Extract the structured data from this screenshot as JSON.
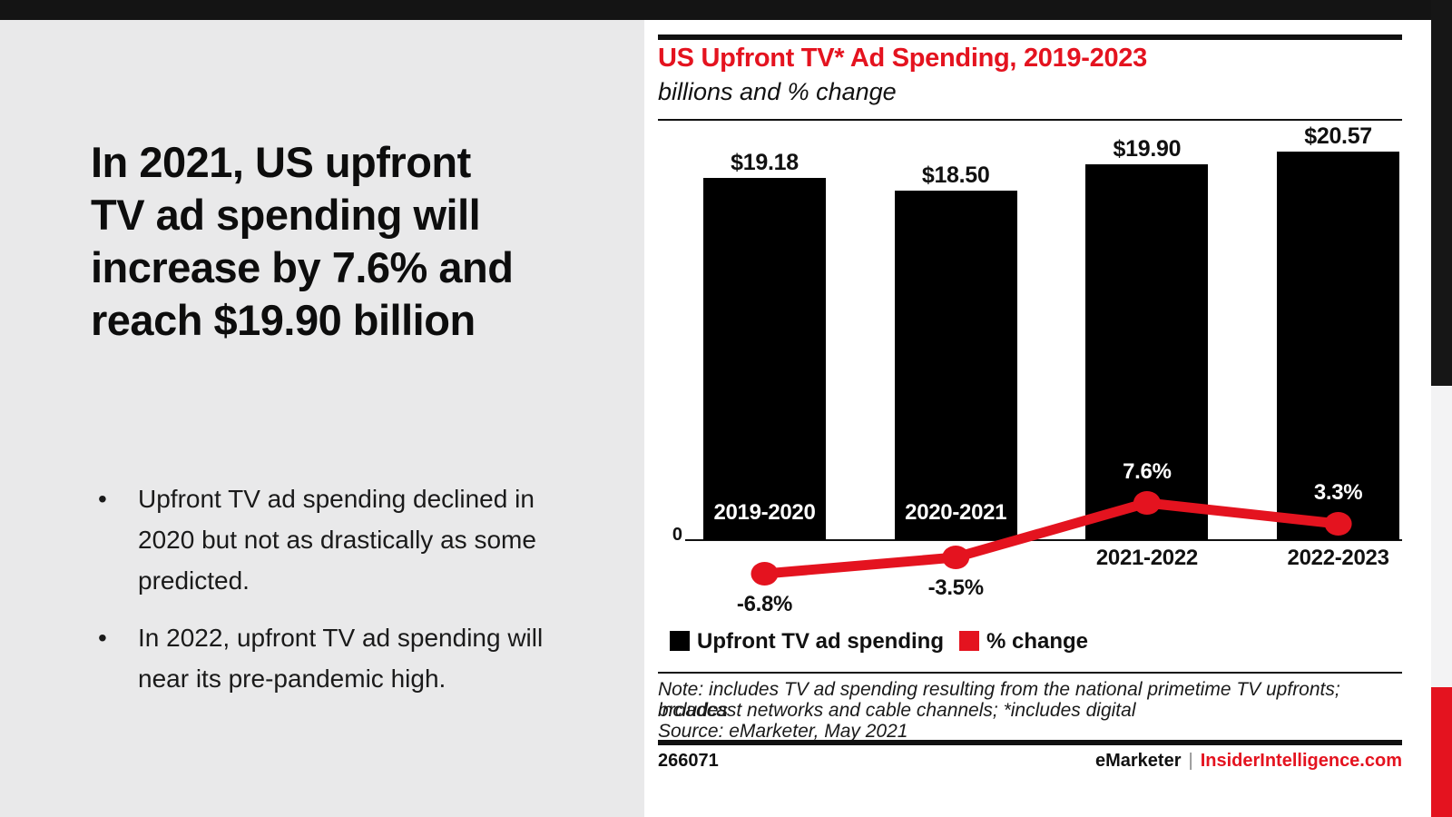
{
  "slide": {
    "headline_lines": [
      "In 2021, US upfront",
      "TV ad spending will",
      "increase by 7.6% and",
      "reach $19.90 billion"
    ],
    "bullets": [
      "Upfront TV ad spending declined in 2020 but not as drastically as some predicted.",
      "In 2022, upfront TV ad spending will near its pre-pandemic high."
    ]
  },
  "chart": {
    "title": "US Upfront TV* Ad Spending, 2019-2023",
    "subtitle": "billions and % change",
    "zero_label": "0",
    "legend": [
      {
        "label": "Upfront TV ad spending",
        "color": "#000000"
      },
      {
        "label": "% change",
        "color": "#e4131f"
      }
    ],
    "note_lines": [
      "Note: includes TV ad spending resulting from the national primetime TV upfronts; includes",
      "broadcast networks and cable channels; *includes digital",
      "Source: eMarketer, May 2021"
    ],
    "footer": {
      "id": "266071",
      "brand": "eMarketer",
      "separator": "|",
      "site": "InsiderIntelligence.com"
    }
  },
  "chart_data": {
    "type": "bar+line",
    "categories": [
      "2019-2020",
      "2020-2021",
      "2021-2022",
      "2022-2023"
    ],
    "series": [
      {
        "name": "Upfront TV ad spending",
        "type": "bar",
        "unit": "USD billions",
        "values": [
          19.18,
          18.5,
          19.9,
          20.57
        ],
        "labels": [
          "$19.18",
          "$18.50",
          "$19.90",
          "$20.57"
        ],
        "color": "#000000"
      },
      {
        "name": "% change",
        "type": "line",
        "unit": "percent",
        "values": [
          -6.8,
          -3.5,
          7.6,
          3.3
        ],
        "labels": [
          "-6.8%",
          "-3.5%",
          "7.6%",
          "3.3%"
        ],
        "color": "#e4131f",
        "label_colors": [
          "#111111",
          "#111111",
          "#ffffff",
          "#ffffff"
        ]
      }
    ],
    "category_label_positions": [
      "inside",
      "inside",
      "below",
      "below"
    ],
    "category_label_colors": [
      "#ffffff",
      "#ffffff",
      "#111111",
      "#111111"
    ],
    "baseline_value": 0,
    "ylim_bars": [
      0,
      21.5
    ],
    "grid": false,
    "legend_position": "bottom"
  },
  "colors": {
    "accent_red": "#e4131f",
    "panel_gray": "#e9e9ea",
    "bar_black": "#000000",
    "edge_gray": "#f3f3f4",
    "top_bar": "#141414"
  }
}
